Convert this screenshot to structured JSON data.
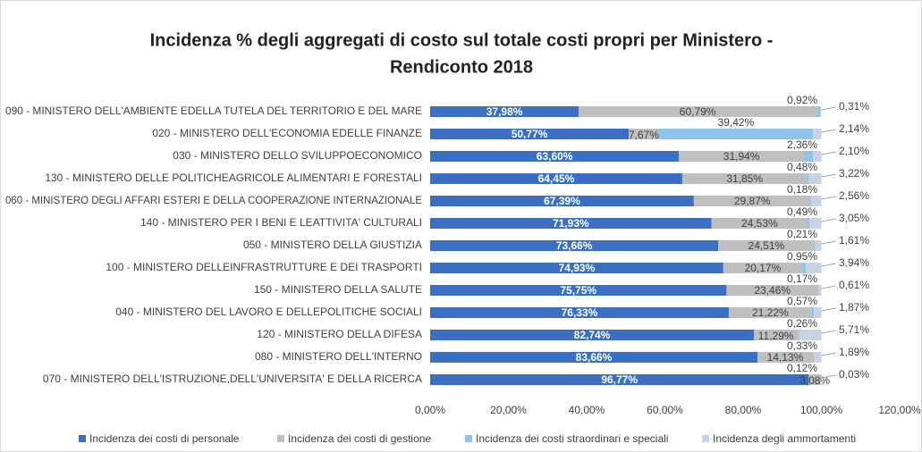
{
  "chart_data": {
    "type": "stacked_bar_horizontal",
    "title": "Incidenza % degli aggregati di costo sul totale costi propri per Ministero -",
    "subtitle": "Rendiconto 2018",
    "categories": [
      "090 - MINISTERO DELL'AMBIENTE EDELLA TUTELA DEL TERRITORIO E DEL MARE",
      "020 - MINISTERO DELL'ECONOMIA EDELLE FINANZE",
      "030 - MINISTERO DELLO SVILUPPOECONOMICO",
      "130 - MINISTERO DELLE POLITICHEAGRICOLE ALIMENTARI E FORESTALI",
      "060 - MINISTERO DEGLI AFFARI ESTERI E DELLA COOPERAZIONE INTERNAZIONALE",
      "140 - MINISTERO PER I BENI E LEATTIVITA' CULTURALI",
      "050 - MINISTERO DELLA GIUSTIZIA",
      "100 - MINISTERO DELLEINFRASTRUTTURE E DEI TRASPORTI",
      "150 - MINISTERO DELLA SALUTE",
      "040 - MINISTERO DEL LAVORO E DELLEPOLITICHE SOCIALI",
      "120 - MINISTERO DELLA DIFESA",
      "080 - MINISTERO DELL'INTERNO",
      "070 - MINISTERO DELL'ISTRUZIONE,DELL'UNIVERSITA' E DELLA RICERCA"
    ],
    "series": [
      {
        "name": "Incidenza dei  costi di personale",
        "color": "#3a6fc4",
        "values": [
          37.98,
          50.77,
          63.6,
          64.45,
          67.39,
          71.93,
          73.66,
          74.93,
          75.75,
          76.33,
          82.74,
          83.66,
          96.77
        ],
        "value_labels": [
          "37,98%",
          "50,77%",
          "63,60%",
          "64,45%",
          "67,39%",
          "71,93%",
          "73,66%",
          "74,93%",
          "75,75%",
          "76,33%",
          "82,74%",
          "83,66%",
          "96,77%"
        ]
      },
      {
        "name": "Incidenza dei  costi di gestione",
        "color": "#bfbfbf",
        "values": [
          60.79,
          7.67,
          31.94,
          31.85,
          29.87,
          24.53,
          24.51,
          20.17,
          23.46,
          21.22,
          11.29,
          14.13,
          3.08
        ],
        "value_labels": [
          "60,79%",
          "7,67%",
          "31,94%",
          "31,85%",
          "29,87%",
          "24,53%",
          "24,51%",
          "20,17%",
          "23,46%",
          "21,22%",
          "11,29%",
          "14,13%",
          "3,08%"
        ]
      },
      {
        "name": "Incidenza dei  costi straordinari e speciali",
        "color": "#8ec4ec",
        "values": [
          0.92,
          39.42,
          2.36,
          0.48,
          0.18,
          0.49,
          0.21,
          0.95,
          0.17,
          0.57,
          0.26,
          0.33,
          0.12
        ],
        "value_labels": [
          "0,92%",
          "39,42%",
          "2,36%",
          "0,48%",
          "0,18%",
          "0,49%",
          "0,21%",
          "0,95%",
          "0,17%",
          "0,57%",
          "0,26%",
          "0,33%",
          "0,12%"
        ]
      },
      {
        "name": "Incidenza degli ammortamenti",
        "color": "#c9d3e6",
        "values": [
          0.31,
          2.14,
          2.1,
          3.22,
          2.56,
          3.05,
          1.61,
          3.94,
          0.61,
          1.87,
          5.71,
          1.89,
          0.03
        ],
        "value_labels": [
          "0,31%",
          "2,14%",
          "2,10%",
          "3,22%",
          "2,56%",
          "3,05%",
          "1,61%",
          "3,94%",
          "0,61%",
          "1,87%",
          "5,71%",
          "1,89%",
          "0,03%"
        ]
      }
    ],
    "xlim": [
      0,
      120
    ],
    "xticks": [
      {
        "value": 0,
        "label": "0,00%"
      },
      {
        "value": 20,
        "label": "20,00%"
      },
      {
        "value": 40,
        "label": "40,00%"
      },
      {
        "value": 60,
        "label": "60,00%"
      },
      {
        "value": 80,
        "label": "80,00%"
      },
      {
        "value": 100,
        "label": "100,00%"
      },
      {
        "value": 120,
        "label": "120,00%"
      }
    ],
    "legend": "bottom"
  }
}
